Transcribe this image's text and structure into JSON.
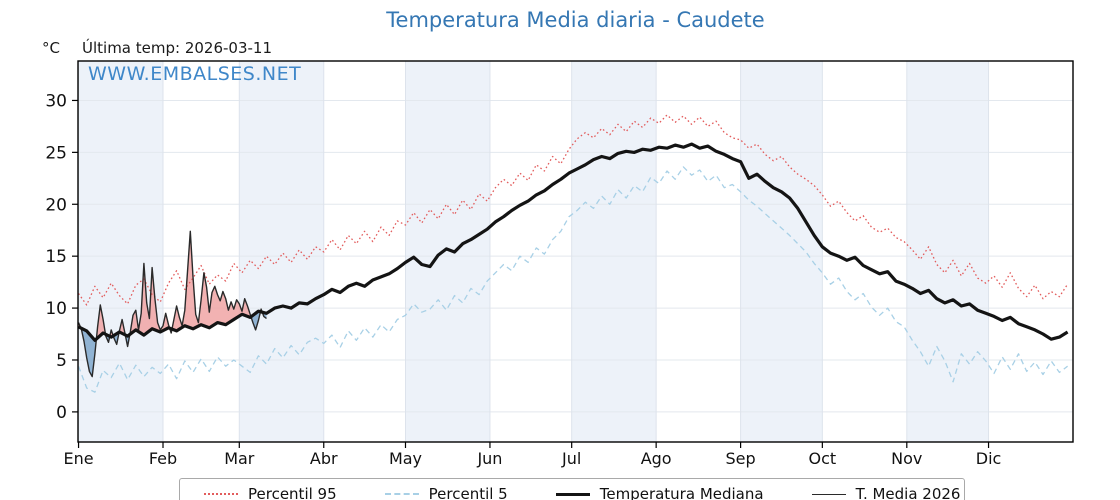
{
  "title": "Temperatura Media diaria - Caudete",
  "unit": "°C",
  "last_temp_label": "Última temp: 2026-03-11",
  "watermark": "WWW.EMBALSES.NET",
  "legend": {
    "p95": "Percentil 95",
    "p5": "Percentil 5",
    "median": "Temperatura Mediana",
    "t2026": "T. Media 2026"
  },
  "colors": {
    "title": "#3577b3",
    "watermark": "#3f87c9",
    "p95": "#e25c5c",
    "p5": "#a8d0e6",
    "median": "#141414",
    "t2026": "#2a2a2a",
    "fill_above": "#f0a5a5",
    "fill_below": "#7fa8cc",
    "month_band": "#edf2f9",
    "grid_h": "#e3e8ee",
    "grid_v": "#dde3ec",
    "axis": "#000000"
  },
  "chart_data": {
    "type": "line",
    "title": "Temperatura Media diaria - Caudete",
    "xlabel": "",
    "ylabel": "°C",
    "grid": true,
    "legend_position": "bottom",
    "x_unit": "day_of_year",
    "xlim": [
      0.8,
      366
    ],
    "ylim": [
      -2.9,
      33.8
    ],
    "yticks": [
      0,
      5,
      10,
      15,
      20,
      25,
      30
    ],
    "month_labels": [
      "Ene",
      "Feb",
      "Mar",
      "Abr",
      "May",
      "Jun",
      "Jul",
      "Ago",
      "Sep",
      "Oct",
      "Nov",
      "Dic"
    ],
    "month_start_days": [
      1,
      32,
      60,
      91,
      121,
      152,
      182,
      213,
      244,
      274,
      305,
      335
    ],
    "shaded_month_indices": [
      0,
      2,
      4,
      6,
      8,
      10
    ],
    "series": [
      {
        "name": "Percentil 95",
        "style": "dotted",
        "color": "#e25c5c",
        "width": 1.3,
        "x_start": 1,
        "x_step": 3,
        "y": [
          11.4,
          10.3,
          12.1,
          11.0,
          12.4,
          11.2,
          10.4,
          12.2,
          12.8,
          11.3,
          10.6,
          12.4,
          13.6,
          11.8,
          12.9,
          14.1,
          12.3,
          13.2,
          12.6,
          14.3,
          13.4,
          14.6,
          13.8,
          15.0,
          14.2,
          15.3,
          14.4,
          15.6,
          14.7,
          15.9,
          15.4,
          16.6,
          15.6,
          17.0,
          16.2,
          17.4,
          16.4,
          17.8,
          17.0,
          18.4,
          18.0,
          19.2,
          18.2,
          19.5,
          18.6,
          20.0,
          19.0,
          20.4,
          19.5,
          21.0,
          20.3,
          21.6,
          22.4,
          21.8,
          23.0,
          22.3,
          23.8,
          23.2,
          24.6,
          23.9,
          25.3,
          26.3,
          26.9,
          26.4,
          27.3,
          26.7,
          27.7,
          27.0,
          28.0,
          27.4,
          28.3,
          27.8,
          28.6,
          27.9,
          28.5,
          27.7,
          28.4,
          27.5,
          28.0,
          26.9,
          26.4,
          26.2,
          25.4,
          25.8,
          24.8,
          24.2,
          24.6,
          23.6,
          22.9,
          22.4,
          21.8,
          20.9,
          19.8,
          20.3,
          19.2,
          18.4,
          18.9,
          17.8,
          17.3,
          17.7,
          16.8,
          16.4,
          15.6,
          14.7,
          15.9,
          14.2,
          13.4,
          14.6,
          13.1,
          14.3,
          12.9,
          12.4,
          13.1,
          12.0,
          13.4,
          11.9,
          11.1,
          12.2,
          10.9,
          11.6,
          11.1,
          12.3
        ]
      },
      {
        "name": "Percentil 5",
        "style": "dashed",
        "color": "#a8d0e6",
        "width": 1.3,
        "x_start": 1,
        "x_step": 3,
        "y": [
          4.4,
          2.3,
          1.9,
          4.0,
          3.3,
          4.7,
          3.1,
          4.5,
          3.4,
          4.3,
          3.7,
          4.6,
          3.2,
          4.9,
          3.8,
          5.1,
          3.9,
          5.3,
          4.4,
          5.0,
          4.4,
          3.8,
          5.4,
          4.6,
          6.1,
          5.2,
          6.4,
          5.5,
          6.7,
          7.1,
          6.6,
          7.4,
          6.2,
          7.8,
          6.9,
          8.1,
          7.2,
          8.4,
          7.7,
          8.9,
          9.3,
          10.4,
          9.6,
          9.9,
          10.8,
          9.8,
          11.2,
          10.5,
          11.9,
          11.3,
          12.6,
          13.4,
          14.2,
          13.6,
          15.0,
          14.4,
          15.8,
          15.2,
          16.6,
          17.4,
          18.8,
          19.4,
          20.2,
          19.6,
          20.8,
          20.0,
          21.4,
          20.6,
          21.8,
          21.2,
          22.6,
          22.0,
          23.2,
          22.4,
          23.6,
          22.8,
          23.3,
          22.2,
          22.8,
          21.6,
          21.9,
          21.2,
          20.4,
          19.8,
          19.1,
          18.4,
          17.7,
          17.0,
          16.2,
          15.4,
          14.3,
          13.4,
          12.3,
          12.9,
          11.6,
          10.8,
          11.4,
          10.1,
          9.3,
          10.0,
          8.7,
          8.2,
          6.9,
          5.8,
          4.4,
          6.3,
          4.9,
          2.9,
          5.6,
          4.6,
          5.8,
          4.9,
          3.7,
          5.3,
          4.1,
          5.6,
          3.9,
          4.8,
          3.6,
          4.9,
          3.8,
          4.4
        ]
      },
      {
        "name": "Temperatura Mediana",
        "style": "solid",
        "color": "#141414",
        "width": 3.2,
        "x_start": 1,
        "x_step": 3,
        "y": [
          8.2,
          7.8,
          6.9,
          7.6,
          7.2,
          7.7,
          7.3,
          7.9,
          7.4,
          8.0,
          7.7,
          8.1,
          7.8,
          8.3,
          8.0,
          8.4,
          8.1,
          8.6,
          8.4,
          8.9,
          9.4,
          9.1,
          9.7,
          9.5,
          10.0,
          10.2,
          10.0,
          10.5,
          10.4,
          10.9,
          11.3,
          11.8,
          11.5,
          12.1,
          12.4,
          12.1,
          12.7,
          13.0,
          13.3,
          13.8,
          14.4,
          14.9,
          14.2,
          14.0,
          15.1,
          15.7,
          15.4,
          16.2,
          16.6,
          17.1,
          17.6,
          18.3,
          18.8,
          19.4,
          19.9,
          20.3,
          20.9,
          21.3,
          21.9,
          22.4,
          23.0,
          23.4,
          23.8,
          24.3,
          24.6,
          24.4,
          24.9,
          25.1,
          25.0,
          25.3,
          25.2,
          25.5,
          25.4,
          25.7,
          25.5,
          25.8,
          25.4,
          25.6,
          25.1,
          24.8,
          24.4,
          24.1,
          22.5,
          22.9,
          22.2,
          21.6,
          21.2,
          20.6,
          19.6,
          18.3,
          17.0,
          15.9,
          15.3,
          15.0,
          14.6,
          14.9,
          14.1,
          13.7,
          13.3,
          13.5,
          12.6,
          12.3,
          11.9,
          11.4,
          11.7,
          10.9,
          10.5,
          10.8,
          10.2,
          10.4,
          9.8,
          9.5,
          9.2,
          8.8,
          9.1,
          8.5,
          8.2,
          7.9,
          7.5,
          7.0,
          7.2,
          7.7
        ]
      },
      {
        "name": "T. Media 2026",
        "style": "solid",
        "color": "#2a2a2a",
        "width": 1.4,
        "x_start": 1,
        "x_step": 1,
        "y": [
          8.6,
          8.0,
          6.8,
          5.2,
          3.9,
          3.4,
          5.6,
          8.2,
          10.3,
          8.9,
          7.3,
          6.7,
          7.9,
          7.1,
          6.5,
          7.8,
          8.9,
          7.6,
          6.3,
          7.7,
          9.3,
          9.8,
          7.9,
          9.5,
          14.3,
          10.5,
          9.0,
          13.9,
          11.0,
          8.6,
          7.9,
          8.3,
          9.5,
          8.4,
          7.6,
          8.9,
          10.2,
          9.1,
          8.3,
          9.8,
          13.5,
          17.4,
          13.0,
          9.4,
          8.6,
          10.8,
          13.4,
          12.0,
          9.6,
          11.5,
          12.1,
          11.3,
          10.7,
          11.6,
          10.9,
          9.8,
          10.6,
          9.9,
          10.8,
          10.4,
          9.7,
          10.9,
          10.2,
          9.4,
          8.6,
          7.9,
          8.8,
          9.9,
          9.2,
          9.0
        ]
      }
    ],
    "fill_between": {
      "series_a": "T. Media 2026",
      "series_b": "Temperatura Mediana",
      "above_color": "#f0a5a5",
      "below_color": "#7fa8cc",
      "opacity": 0.85
    }
  }
}
